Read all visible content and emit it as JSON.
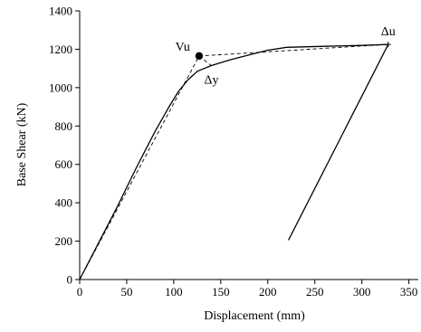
{
  "chart_data": {
    "type": "line",
    "xlabel": "Displacement (mm)",
    "ylabel": "Base Shear (kN)",
    "xlim": [
      0,
      360
    ],
    "ylim": [
      0,
      1400
    ],
    "xticks": [
      0,
      50,
      100,
      150,
      200,
      250,
      300,
      350
    ],
    "yticks": [
      0,
      200,
      400,
      600,
      800,
      1000,
      1200,
      1400
    ],
    "grid": false,
    "series": [
      {
        "style": "solid",
        "color": "#000000",
        "points": [
          [
            0,
            0
          ],
          [
            20,
            190
          ],
          [
            40,
            380
          ],
          [
            60,
            580
          ],
          [
            80,
            770
          ],
          [
            95,
            900
          ],
          [
            105,
            980
          ],
          [
            115,
            1040
          ],
          [
            125,
            1085
          ],
          [
            140,
            1115
          ],
          [
            160,
            1145
          ],
          [
            180,
            1170
          ],
          [
            200,
            1195
          ],
          [
            220,
            1210
          ],
          [
            260,
            1215
          ],
          [
            300,
            1220
          ],
          [
            328,
            1225
          ]
        ]
      },
      {
        "style": "solid",
        "color": "#000000",
        "points": [
          [
            328,
            1225
          ],
          [
            222,
            205
          ]
        ]
      },
      {
        "style": "dashed",
        "color": "#000000",
        "points": [
          [
            0,
            0
          ],
          [
            127,
            1165
          ],
          [
            328,
            1225
          ]
        ]
      },
      {
        "style": "dashed",
        "color": "#000000",
        "points": [
          [
            127,
            1165
          ],
          [
            140,
            1115
          ]
        ]
      }
    ],
    "markers": [
      {
        "label": "Vu",
        "x": 127,
        "y": 1165,
        "shape": "filled-circle"
      },
      {
        "label": "Δy",
        "x": 140,
        "y": 1115,
        "shape": "none"
      },
      {
        "label": "Δu",
        "x": 328,
        "y": 1225,
        "shape": "plus"
      }
    ]
  }
}
